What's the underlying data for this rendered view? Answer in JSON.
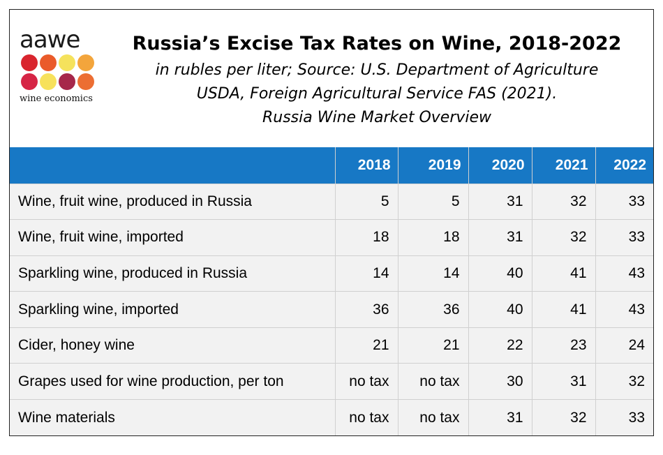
{
  "logo": {
    "word": "aawe",
    "subtitle": "wine economics",
    "dot_colors": [
      "#d9252e",
      "#ea5b2a",
      "#f5e25c",
      "#f3a53c",
      "#d62545",
      "#f7e15b",
      "#a6274a",
      "#ec6e33"
    ]
  },
  "header": {
    "title": "Russia’s Excise Tax Rates on Wine, 2018-2022",
    "subtitle_lines": [
      "in rubles per liter; Source: U.S. Department of Agriculture",
      "USDA, Foreign Agricultural Service FAS (2021).",
      "Russia Wine Market Overview"
    ]
  },
  "chart_data": {
    "type": "table",
    "title": "Russia’s Excise Tax Rates on Wine, 2018-2022",
    "columns": [
      "",
      "2018",
      "2019",
      "2020",
      "2021",
      "2022"
    ],
    "rows": [
      [
        "Wine, fruit wine, produced in Russia",
        "5",
        "5",
        "31",
        "32",
        "33"
      ],
      [
        "Wine, fruit wine, imported",
        "18",
        "18",
        "31",
        "32",
        "33"
      ],
      [
        "Sparkling wine, produced in Russia",
        "14",
        "14",
        "40",
        "41",
        "43"
      ],
      [
        "Sparkling wine, imported",
        "36",
        "36",
        "40",
        "41",
        "43"
      ],
      [
        "Cider, honey wine",
        "21",
        "21",
        "22",
        "23",
        "24"
      ],
      [
        "Grapes used for wine production, per ton",
        "no tax",
        "no tax",
        "30",
        "31",
        "32"
      ],
      [
        "Wine materials",
        "no tax",
        "no tax",
        "31",
        "32",
        "33"
      ]
    ],
    "header_color": "#1778c5",
    "row_color": "#f2f2f2"
  }
}
